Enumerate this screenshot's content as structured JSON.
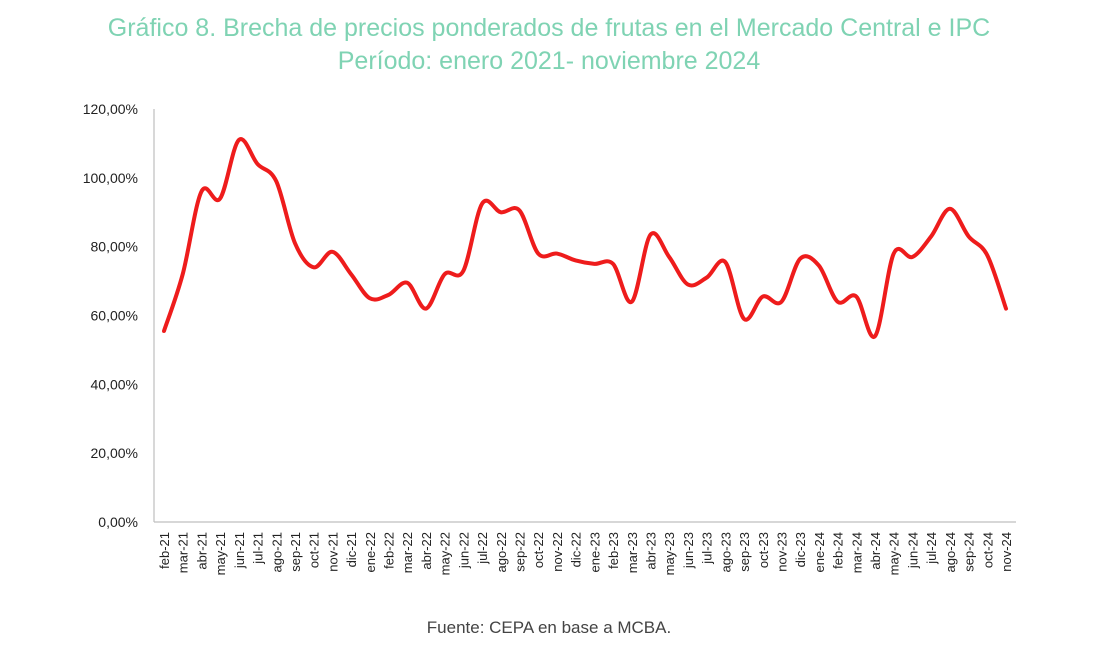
{
  "chart_data": {
    "type": "line",
    "title": "Gráfico 8. Brecha de precios ponderados de frutas en el Mercado Central e IPC",
    "subtitle": "Período: enero 2021- noviembre 2024",
    "source": "Fuente: CEPA en base a MCBA.",
    "ylim": [
      0,
      120
    ],
    "yticks": [
      "0,00%",
      "20,00%",
      "40,00%",
      "60,00%",
      "80,00%",
      "100,00%",
      "120,00%"
    ],
    "grid": false,
    "legend": "none",
    "line_color": "#ee1c1c",
    "title_color": "#7fd3b3",
    "categories": [
      "feb-21",
      "mar-21",
      "abr-21",
      "may-21",
      "jun-21",
      "jul-21",
      "ago-21",
      "sep-21",
      "oct-21",
      "nov-21",
      "dic-21",
      "ene-22",
      "feb-22",
      "mar-22",
      "abr-22",
      "may-22",
      "jun-22",
      "jul-22",
      "ago-22",
      "sep-22",
      "oct-22",
      "nov-22",
      "dic-22",
      "ene-23",
      "feb-23",
      "mar-23",
      "abr-23",
      "may-23",
      "jun-23",
      "jul-23",
      "ago-23",
      "sep-23",
      "oct-23",
      "nov-23",
      "dic-23",
      "ene-24",
      "feb-24",
      "mar-24",
      "abr-24",
      "may-24",
      "jun-24",
      "jul-24",
      "ago-24",
      "sep-24",
      "oct-24",
      "nov-24"
    ],
    "series": [
      {
        "values": [
          55.5,
          72,
          96,
          94,
          111,
          104,
          99,
          81,
          74,
          78.5,
          72,
          65,
          66,
          69.5,
          62,
          72,
          73,
          92.5,
          90,
          90.5,
          78,
          78,
          76,
          75,
          75,
          64,
          83.5,
          77,
          69,
          71,
          75.5,
          59,
          65.5,
          64,
          76.5,
          74.5,
          64,
          65.5,
          54,
          78,
          77,
          83,
          91,
          83,
          77.5,
          62
        ]
      }
    ]
  }
}
